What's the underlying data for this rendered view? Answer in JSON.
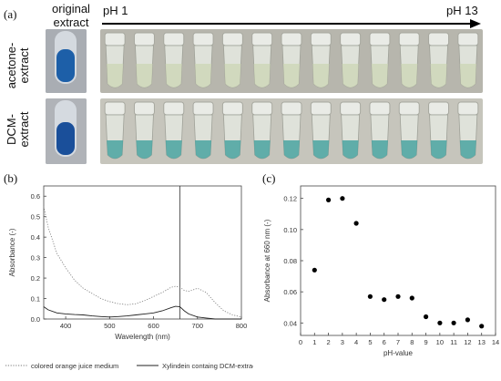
{
  "panel_a": {
    "label": "(a)",
    "original_extract_label_line1": "original",
    "original_extract_label_line2": "extract",
    "ph_start": "pH 1",
    "ph_end": "pH 13",
    "row1_label_line1": "acetone-",
    "row1_label_line2": "extract",
    "row2_label_line1": "DCM-",
    "row2_label_line2": "extract",
    "colors": {
      "row1_bg": "#b7b6ad",
      "row2_bg": "#c6c5bc",
      "row1_liquid": "#cfd7b8",
      "row2_liquid": "#4aa3a0",
      "original": "#1f5fa6"
    }
  },
  "panel_b": {
    "label": "(b)",
    "legend": [
      "colored orange juice medium",
      "Xylindein containg DCM-extract"
    ],
    "chart_data": {
      "type": "line",
      "title": "",
      "xlabel": "Wavelength (nm)",
      "ylabel": "Absorbance (-)",
      "xlim": [
        350,
        800
      ],
      "ylim": [
        0,
        0.65
      ],
      "xticks": [
        400,
        500,
        600,
        700,
        800
      ],
      "yticks": [
        0.0,
        0.1,
        0.2,
        0.3,
        0.4,
        0.5,
        0.6
      ],
      "ytick_labels": [
        "0.0",
        "0.1",
        "0.2",
        "0.3",
        "0.4",
        "0.5",
        "0.6"
      ],
      "vline_x": 660,
      "series": [
        {
          "name": "colored orange juice medium",
          "style": "dotted",
          "x": [
            350,
            360,
            380,
            400,
            420,
            440,
            460,
            480,
            500,
            520,
            540,
            560,
            580,
            600,
            620,
            640,
            650,
            660,
            670,
            680,
            700,
            720,
            740,
            760,
            780,
            800
          ],
          "y": [
            0.55,
            0.45,
            0.32,
            0.25,
            0.19,
            0.15,
            0.125,
            0.1,
            0.085,
            0.075,
            0.07,
            0.075,
            0.09,
            0.11,
            0.13,
            0.155,
            0.16,
            0.155,
            0.14,
            0.135,
            0.15,
            0.13,
            0.08,
            0.04,
            0.02,
            0.01
          ]
        },
        {
          "name": "Xylindein containg DCM-extract",
          "style": "solid",
          "x": [
            350,
            360,
            380,
            400,
            420,
            440,
            460,
            480,
            500,
            520,
            540,
            560,
            580,
            600,
            620,
            640,
            650,
            660,
            670,
            680,
            700,
            720,
            740,
            760,
            780,
            800
          ],
          "y": [
            0.06,
            0.045,
            0.03,
            0.025,
            0.022,
            0.02,
            0.015,
            0.012,
            0.01,
            0.012,
            0.015,
            0.02,
            0.025,
            0.03,
            0.04,
            0.055,
            0.062,
            0.06,
            0.04,
            0.025,
            0.01,
            0.005,
            0.0,
            0.0,
            0.0,
            0.0
          ]
        }
      ]
    }
  },
  "panel_c": {
    "label": "(c)",
    "chart_data": {
      "type": "scatter",
      "title": "",
      "xlabel": "pH-value",
      "ylabel": "Absorbance at 660 nm (-)",
      "xlim": [
        0,
        14
      ],
      "ylim": [
        0.032,
        0.128
      ],
      "xticks": [
        0,
        1,
        2,
        3,
        4,
        5,
        6,
        7,
        8,
        9,
        10,
        11,
        12,
        13,
        14
      ],
      "yticks": [
        0.04,
        0.06,
        0.08,
        0.1,
        0.12
      ],
      "ytick_labels": [
        "0.04",
        "0.06",
        "0.08",
        "0.10",
        "0.12"
      ],
      "series": [
        {
          "name": "",
          "x": [
            1,
            2,
            3,
            4,
            5,
            6,
            7,
            8,
            9,
            10,
            11,
            12,
            13
          ],
          "y": [
            0.074,
            0.119,
            0.12,
            0.104,
            0.057,
            0.055,
            0.057,
            0.056,
            0.044,
            0.04,
            0.04,
            0.042,
            0.038
          ]
        }
      ]
    }
  }
}
